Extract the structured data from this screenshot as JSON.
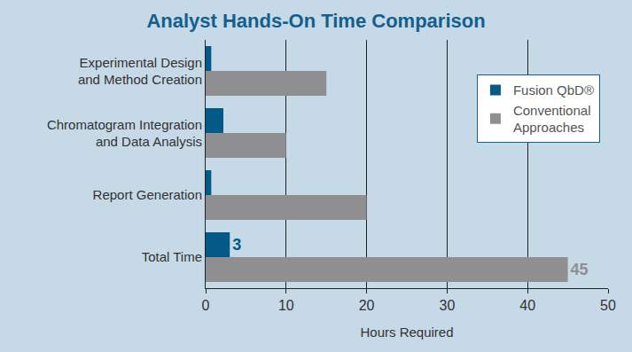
{
  "chart_data": {
    "type": "bar",
    "orientation": "horizontal",
    "title": "Analyst Hands-On Time Comparison",
    "x_label": "Hours Required",
    "categories": [
      "Experimental Design\nand Method Creation",
      "Chromatogram Integration\nand Data Analysis",
      "Report Generation",
      "Total Time"
    ],
    "series": [
      {
        "name": "Fusion QbD®",
        "color": "#035a86",
        "values": [
          0.7,
          2.2,
          0.7,
          3
        ],
        "value_labels": [
          null,
          null,
          null,
          "3"
        ]
      },
      {
        "name": "Conventional\nApproaches",
        "color": "#8f8f91",
        "values": [
          15,
          10,
          20,
          45
        ],
        "value_labels": [
          null,
          null,
          null,
          "45"
        ]
      }
    ],
    "xlim": [
      0,
      50
    ],
    "xticks": [
      0,
      10,
      20,
      30,
      40,
      50
    ],
    "grid": true,
    "legend": "top right",
    "data_labels": true
  }
}
